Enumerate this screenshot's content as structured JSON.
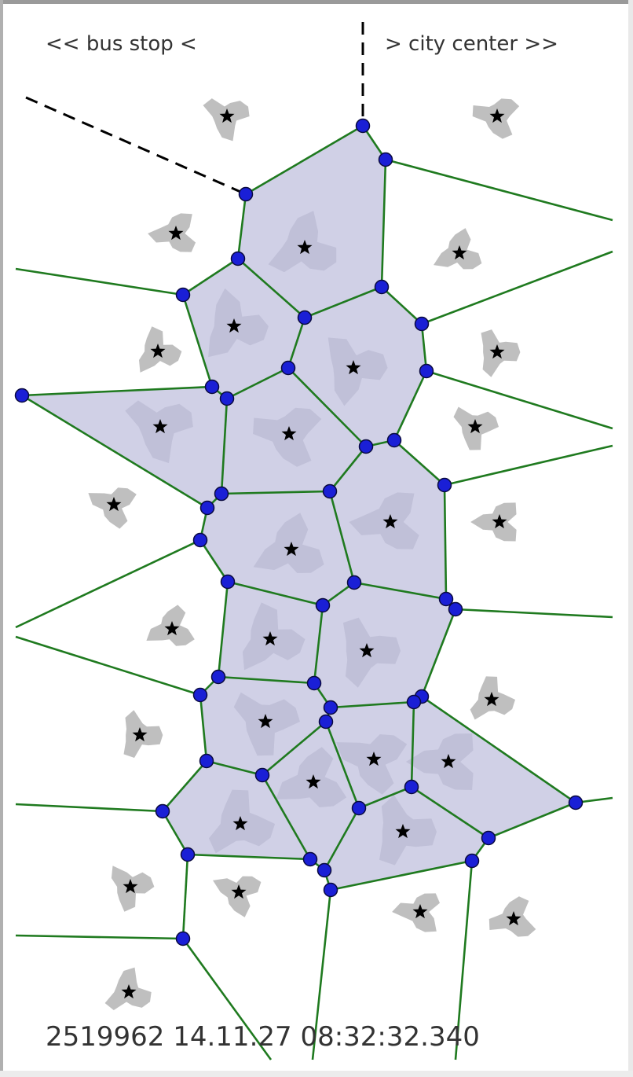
{
  "labels": {
    "bus_stop": "<< bus stop <",
    "city_center": "> city center >>",
    "footer": "2519962 14.11.27 08:32:32.340"
  },
  "colors": {
    "region_fill": "#c9cae3",
    "edge": "#1f7a1f",
    "vertex": "#1a1fd6",
    "vertex_stroke": "#0a0a40",
    "star": "#000000",
    "blob_dark": "#5b5b70",
    "blob_light": "#a9a9a9"
  }
}
